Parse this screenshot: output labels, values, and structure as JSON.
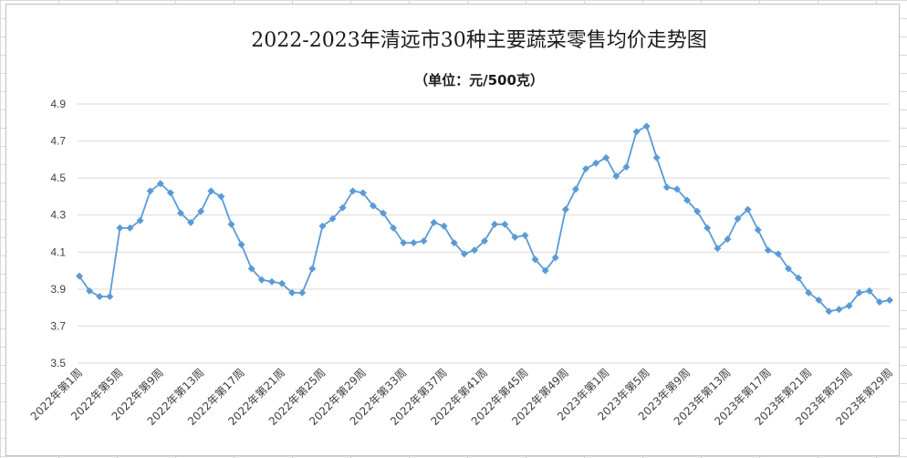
{
  "chart_data": {
    "type": "line",
    "title": "2022-2023年清远市30种主要蔬菜零售均价走势图",
    "subtitle": "（单位：元/500克）",
    "xlabel": "",
    "ylabel": "",
    "ylim": [
      3.5,
      4.9
    ],
    "yticks": [
      "3.5",
      "3.7",
      "3.9",
      "4.1",
      "4.3",
      "4.5",
      "4.7",
      "4.9"
    ],
    "grid": true,
    "legend": "none",
    "line_color": "#5b9bd5",
    "x_tick_labels": [
      "2022年第1周",
      "2022年第5周",
      "2022年第9周",
      "2022年第13周",
      "2022年第17周",
      "2022年第21周",
      "2022年第25周",
      "2022年第29周",
      "2022年第33周",
      "2022年第37周",
      "2022年第41周",
      "2022年第45周",
      "2022年第49周",
      "2023年第1周",
      "2023年第5周",
      "2023年第9周",
      "2023年第13周",
      "2023年第17周",
      "2023年第21周",
      "2023年第25周",
      "2023年第29周"
    ],
    "categories": [
      "2022年第1周",
      "2022年第2周",
      "2022年第3周",
      "2022年第4周",
      "2022年第5周",
      "2022年第6周",
      "2022年第7周",
      "2022年第8周",
      "2022年第9周",
      "2022年第10周",
      "2022年第11周",
      "2022年第12周",
      "2022年第13周",
      "2022年第14周",
      "2022年第15周",
      "2022年第16周",
      "2022年第17周",
      "2022年第18周",
      "2022年第19周",
      "2022年第20周",
      "2022年第21周",
      "2022年第22周",
      "2022年第23周",
      "2022年第24周",
      "2022年第25周",
      "2022年第26周",
      "2022年第27周",
      "2022年第28周",
      "2022年第29周",
      "2022年第30周",
      "2022年第31周",
      "2022年第32周",
      "2022年第33周",
      "2022年第34周",
      "2022年第35周",
      "2022年第36周",
      "2022年第37周",
      "2022年第38周",
      "2022年第39周",
      "2022年第40周",
      "2022年第41周",
      "2022年第42周",
      "2022年第43周",
      "2022年第44周",
      "2022年第45周",
      "2022年第46周",
      "2022年第47周",
      "2022年第48周",
      "2022年第49周",
      "2022年第50周",
      "2022年第51周",
      "2022年第52周",
      "2023年第1周",
      "2023年第2周",
      "2023年第3周",
      "2023年第4周",
      "2023年第5周",
      "2023年第6周",
      "2023年第7周",
      "2023年第8周",
      "2023年第9周",
      "2023年第10周",
      "2023年第11周",
      "2023年第12周",
      "2023年第13周",
      "2023年第14周",
      "2023年第15周",
      "2023年第16周",
      "2023年第17周",
      "2023年第18周",
      "2023年第19周",
      "2023年第20周",
      "2023年第21周",
      "2023年第22周",
      "2023年第23周",
      "2023年第24周",
      "2023年第25周",
      "2023年第26周",
      "2023年第27周",
      "2023年第28周",
      "2023年第29周"
    ],
    "values": [
      3.97,
      3.89,
      3.86,
      3.86,
      4.23,
      4.23,
      4.27,
      4.43,
      4.47,
      4.42,
      4.31,
      4.26,
      4.32,
      4.43,
      4.4,
      4.25,
      4.14,
      4.01,
      3.95,
      3.94,
      3.93,
      3.88,
      3.88,
      4.01,
      4.24,
      4.28,
      4.34,
      4.43,
      4.42,
      4.35,
      4.31,
      4.23,
      4.15,
      4.15,
      4.16,
      4.26,
      4.24,
      4.15,
      4.09,
      4.11,
      4.16,
      4.25,
      4.25,
      4.18,
      4.19,
      4.06,
      4.0,
      4.07,
      4.33,
      4.44,
      4.55,
      4.58,
      4.61,
      4.51,
      4.56,
      4.75,
      4.78,
      4.61,
      4.45,
      4.44,
      4.38,
      4.32,
      4.23,
      4.12,
      4.17,
      4.28,
      4.33,
      4.22,
      4.11,
      4.09,
      4.01,
      3.96,
      3.88,
      3.84,
      3.78,
      3.79,
      3.81,
      3.88,
      3.89,
      3.83,
      3.84
    ]
  }
}
